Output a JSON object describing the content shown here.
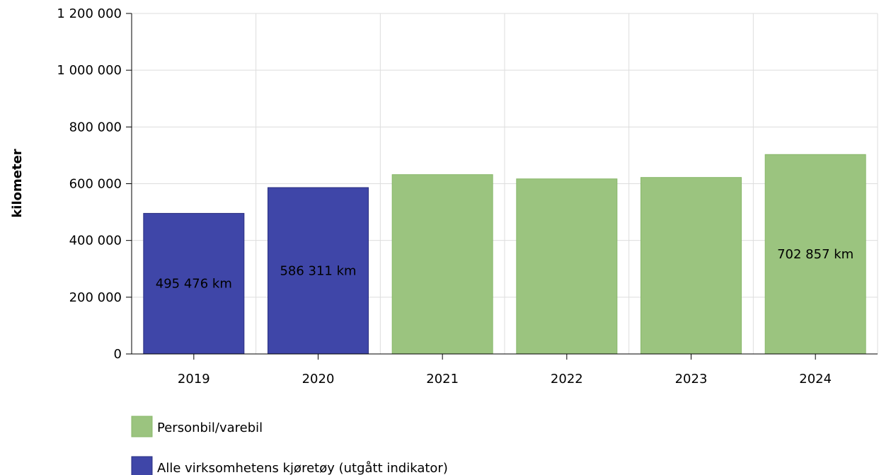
{
  "chart_data": {
    "type": "bar",
    "categories": [
      "2019",
      "2020",
      "2021",
      "2022",
      "2023",
      "2024"
    ],
    "values": [
      495476,
      586311,
      632000,
      617000,
      622000,
      702857
    ],
    "series_index": [
      1,
      1,
      0,
      0,
      0,
      0
    ],
    "series": [
      {
        "name": "Personbil/varebil",
        "color": "#9bc47f",
        "stroke": "#88b86a"
      },
      {
        "name": "Alle virksomhetens kjøretøy (utgått indikator)",
        "color": "#3f46a8",
        "stroke": "#2a2f80"
      }
    ],
    "data_labels": [
      "495 476 km",
      "586 311 km",
      "",
      "",
      "",
      "702 857 km"
    ],
    "ylabel": "kilometer",
    "xlabel": "",
    "ylim": [
      0,
      1200000
    ],
    "yticks": [
      0,
      200000,
      400000,
      600000,
      800000,
      1000000,
      1200000
    ],
    "ytick_labels": [
      "0",
      "200 000",
      "400 000",
      "600 000",
      "800 000",
      "1 000 000",
      "1 200 000"
    ],
    "grid": true,
    "legend_position": "bottom-left"
  }
}
